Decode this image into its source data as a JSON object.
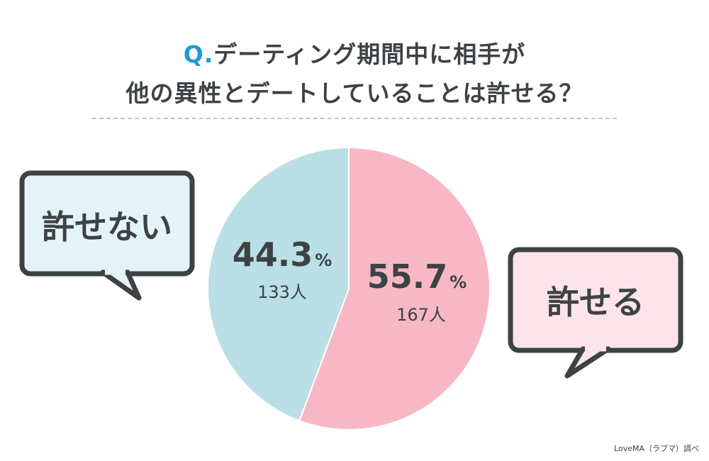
{
  "header": {
    "q_prefix": "Q.",
    "line1_rest": "デーティング期間中に相手が",
    "line2": "他の異性とデートしていることは許せる？"
  },
  "chart_data": {
    "type": "pie",
    "slices": [
      {
        "label": "許せる",
        "percent": 55.7,
        "percent_text": "55.7",
        "count_text": "167人",
        "color": "#f8b7c5"
      },
      {
        "label": "許せない",
        "percent": 44.3,
        "percent_text": "44.3",
        "count_text": "133人",
        "color": "#badfe6"
      }
    ],
    "percent_unit": "%",
    "start": "top",
    "direction": "clockwise"
  },
  "bubbles": {
    "left": {
      "label": "許せない",
      "fill": "#e4f3f6",
      "stroke": "#3d4245"
    },
    "right": {
      "label": "許せる",
      "fill": "#fde4ea",
      "stroke": "#3d4245"
    }
  },
  "credit": "LoveMA（ラブマ）調べ"
}
